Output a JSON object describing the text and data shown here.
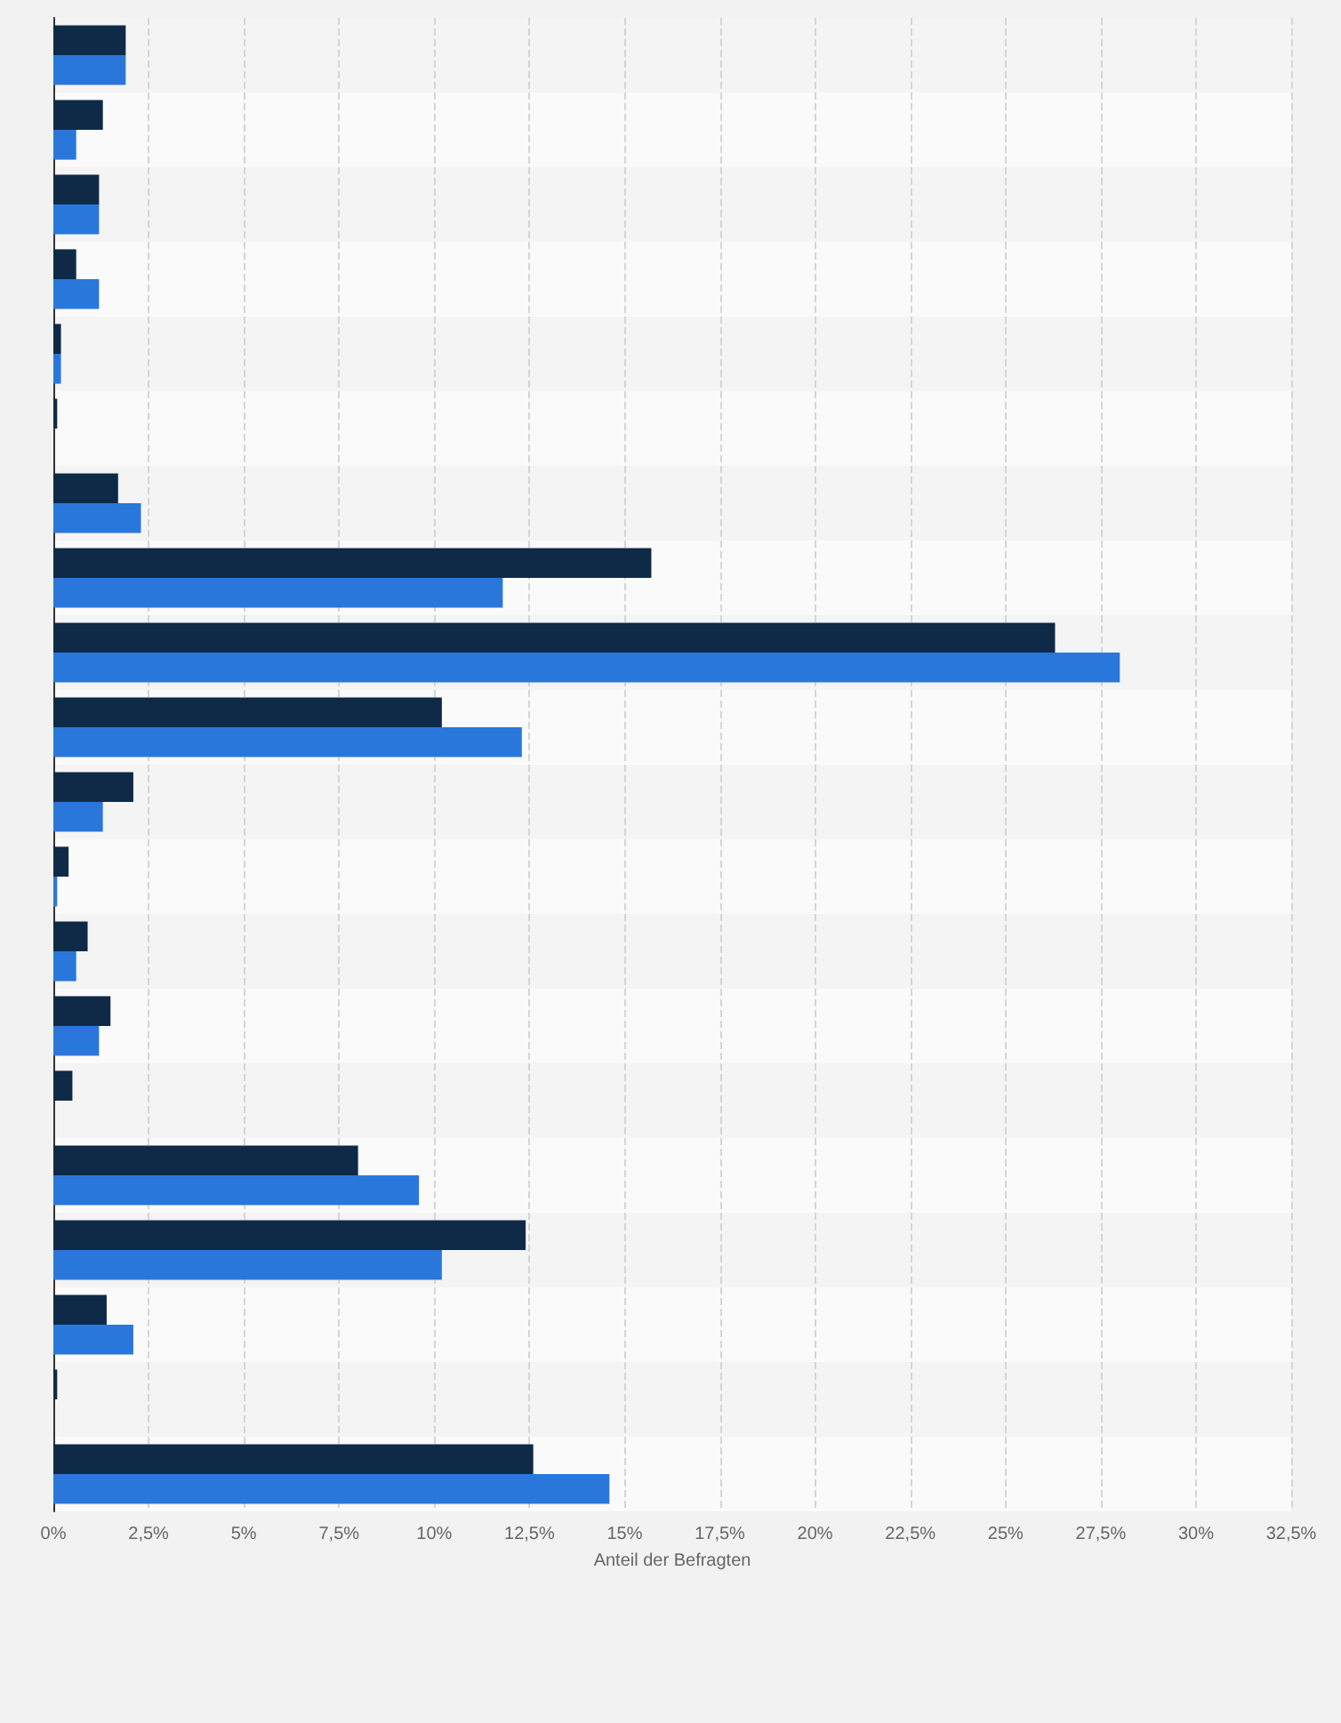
{
  "chart_data": {
    "type": "bar",
    "orientation": "horizontal",
    "xlabel": "Anteil der Befragten",
    "categories": [
      null,
      null,
      null,
      null,
      null,
      null,
      null,
      null,
      null,
      null,
      null,
      null,
      null,
      null,
      null,
      null,
      null,
      null,
      null,
      null
    ],
    "series": [
      {
        "color": "#0f2a47",
        "values": [
          1.9,
          1.3,
          1.2,
          0.6,
          0.2,
          0.1,
          1.7,
          15.7,
          26.3,
          10.2,
          2.1,
          0.4,
          0.9,
          1.5,
          0.5,
          8.0,
          12.4,
          1.4,
          0.1,
          12.6
        ]
      },
      {
        "color": "#2a77dc",
        "values": [
          1.9,
          0.6,
          1.2,
          1.2,
          0.2,
          0,
          2.3,
          11.8,
          28.0,
          12.3,
          1.3,
          0.1,
          0.6,
          1.2,
          0,
          9.6,
          10.2,
          2.1,
          0,
          14.6
        ]
      }
    ],
    "xlim": [
      0,
      32.5
    ],
    "xticks": [
      {
        "value": 0,
        "label": "0%"
      },
      {
        "value": 2.5,
        "label": "2,5%"
      },
      {
        "value": 5,
        "label": "5%"
      },
      {
        "value": 7.5,
        "label": "7,5%"
      },
      {
        "value": 10,
        "label": "10%"
      },
      {
        "value": 12.5,
        "label": "12,5%"
      },
      {
        "value": 15,
        "label": "15%"
      },
      {
        "value": 17.5,
        "label": "17,5%"
      },
      {
        "value": 20,
        "label": "20%"
      },
      {
        "value": 22.5,
        "label": "22,5%"
      },
      {
        "value": 25,
        "label": "25%"
      },
      {
        "value": 27.5,
        "label": "27,5%"
      },
      {
        "value": 30,
        "label": "30%"
      },
      {
        "value": 32.5,
        "label": "32,5%"
      }
    ],
    "grid": "x"
  }
}
